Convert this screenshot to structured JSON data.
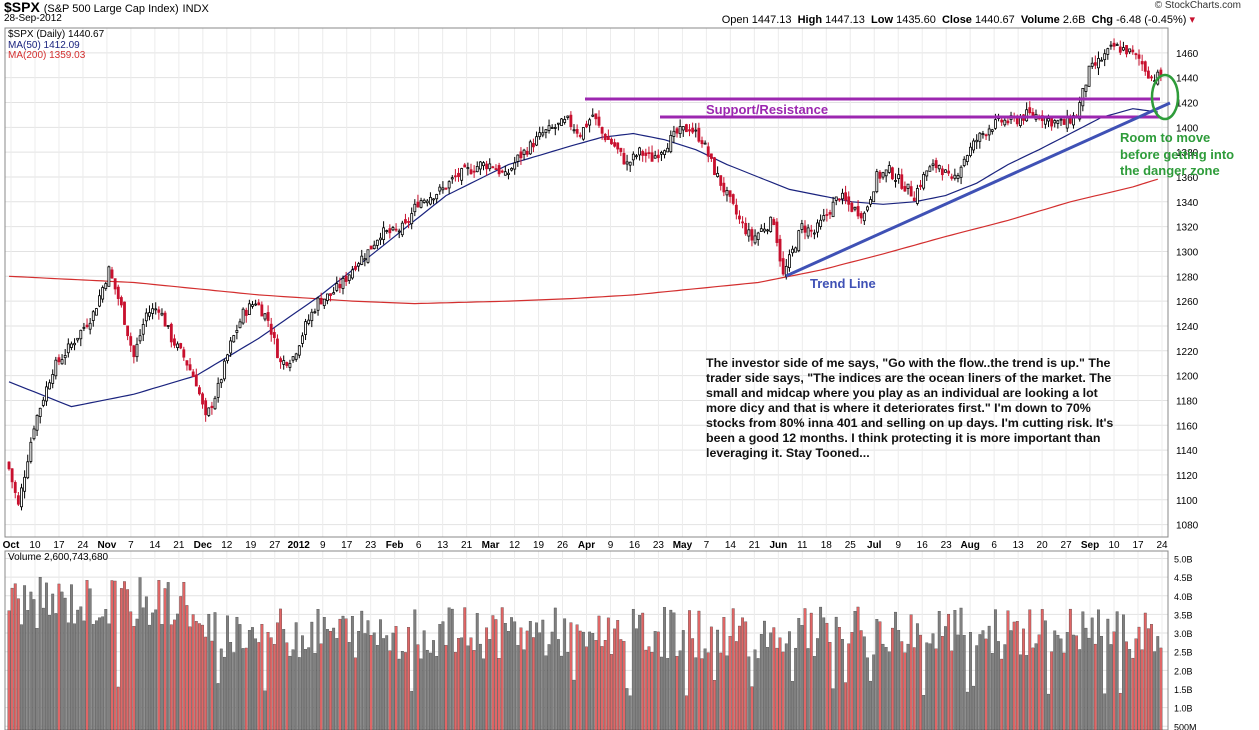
{
  "header": {
    "symbol": "$SPX",
    "name": "(S&P 500 Large Cap Index)",
    "exchange": "INDX",
    "date": "28-Sep-2012",
    "brand": "© StockCharts.com",
    "open_label": "Open",
    "open": "1447.13",
    "high_label": "High",
    "high": "1447.13",
    "low_label": "Low",
    "low": "1435.60",
    "close_label": "Close",
    "close": "1440.67",
    "volume_label": "Volume",
    "volume": "2.6B",
    "chg_label": "Chg",
    "chg": "-6.48 (-0.45%)"
  },
  "legend": {
    "price": "$SPX (Daily) 1440.67",
    "ma50": "MA(50) 1412.09",
    "ma200": "MA(200) 1359.03",
    "volume": "Volume 2,600,743,680"
  },
  "annotations": {
    "support": "Support/Resistance",
    "trend": "Trend Line",
    "room": [
      "Room to move",
      "before getting into",
      "the danger zone"
    ],
    "note": "The investor side of me says, \"Go with the flow..the trend is up.\" The trader side says, \"The indices are the ocean liners of the market. The small and midcap where you play as an individual are looking a lot more dicy and that is where it deteriorates first.\"  I'm down to 70% stocks from 80% inna 401 and selling on up days. I'm cutting risk. It's been a good 12 months. I think protecting it is more important than leveraging it. Stay Tooned..."
  },
  "colors": {
    "up": "#000000",
    "down": "#c8102e",
    "ma50": "#1a237e",
    "ma200": "#d32f2f",
    "support": "#9c27b0",
    "trend": "#3f51b5",
    "room": "#2e9c3a",
    "vol_up": "#808080",
    "vol_down": "#e06666"
  },
  "chart_data": [
    {
      "type": "candlestick",
      "title": "$SPX (Daily)",
      "ylim": [
        1070,
        1480
      ],
      "y_ticks": [
        1080,
        1100,
        1120,
        1140,
        1160,
        1180,
        1200,
        1220,
        1240,
        1260,
        1280,
        1300,
        1320,
        1340,
        1360,
        1380,
        1400,
        1420,
        1440,
        1460
      ],
      "x_labels": [
        "Oct",
        "10",
        "17",
        "24",
        "Nov",
        "7",
        "14",
        "21",
        "Dec",
        "12",
        "19",
        "27",
        "2012",
        "9",
        "17",
        "23",
        "Feb",
        "6",
        "13",
        "21",
        "Mar",
        "12",
        "19",
        "26",
        "Apr",
        "9",
        "16",
        "23",
        "May",
        "7",
        "14",
        "21",
        "Jun",
        "11",
        "18",
        "25",
        "Jul",
        "9",
        "16",
        "23",
        "Aug",
        "6",
        "13",
        "20",
        "27",
        "Sep",
        "10",
        "17",
        "24"
      ],
      "close_path": [
        [
          0,
          1125
        ],
        [
          3,
          1095
        ],
        [
          8,
          1160
        ],
        [
          14,
          1205
        ],
        [
          20,
          1225
        ],
        [
          27,
          1250
        ],
        [
          32,
          1285
        ],
        [
          36,
          1255
        ],
        [
          40,
          1215
        ],
        [
          44,
          1250
        ],
        [
          48,
          1255
        ],
        [
          52,
          1230
        ],
        [
          56,
          1215
        ],
        [
          60,
          1195
        ],
        [
          63,
          1165
        ],
        [
          67,
          1190
        ],
        [
          71,
          1225
        ],
        [
          75,
          1250
        ],
        [
          79,
          1260
        ],
        [
          83,
          1245
        ],
        [
          87,
          1210
        ],
        [
          91,
          1215
        ],
        [
          95,
          1240
        ],
        [
          99,
          1260
        ],
        [
          103,
          1265
        ],
        [
          107,
          1275
        ],
        [
          111,
          1290
        ],
        [
          115,
          1300
        ],
        [
          119,
          1315
        ],
        [
          123,
          1315
        ],
        [
          127,
          1320
        ],
        [
          131,
          1340
        ],
        [
          135,
          1345
        ],
        [
          139,
          1350
        ],
        [
          143,
          1360
        ],
        [
          147,
          1365
        ],
        [
          151,
          1370
        ],
        [
          155,
          1370
        ],
        [
          159,
          1360
        ],
        [
          163,
          1375
        ],
        [
          167,
          1385
        ],
        [
          171,
          1395
        ],
        [
          175,
          1400
        ],
        [
          179,
          1405
        ],
        [
          183,
          1395
        ],
        [
          187,
          1410
        ],
        [
          190,
          1395
        ],
        [
          194,
          1385
        ],
        [
          198,
          1370
        ],
        [
          202,
          1380
        ],
        [
          206,
          1375
        ],
        [
          210,
          1385
        ],
        [
          214,
          1395
        ],
        [
          218,
          1400
        ],
        [
          222,
          1390
        ],
        [
          226,
          1365
        ],
        [
          230,
          1345
        ],
        [
          234,
          1325
        ],
        [
          238,
          1310
        ],
        [
          242,
          1320
        ],
        [
          245,
          1325
        ],
        [
          248,
          1280
        ],
        [
          251,
          1300
        ],
        [
          254,
          1320
        ],
        [
          258,
          1315
        ],
        [
          262,
          1330
        ],
        [
          266,
          1345
        ],
        [
          270,
          1335
        ],
        [
          274,
          1330
        ],
        [
          278,
          1360
        ],
        [
          282,
          1365
        ],
        [
          286,
          1355
        ],
        [
          290,
          1345
        ],
        [
          294,
          1365
        ],
        [
          298,
          1370
        ],
        [
          302,
          1355
        ],
        [
          306,
          1375
        ],
        [
          310,
          1390
        ],
        [
          314,
          1400
        ],
        [
          318,
          1405
        ],
        [
          322,
          1405
        ],
        [
          326,
          1410
        ],
        [
          330,
          1410
        ],
        [
          334,
          1405
        ],
        [
          338,
          1403
        ],
        [
          342,
          1410
        ],
        [
          346,
          1445
        ],
        [
          350,
          1455
        ],
        [
          354,
          1465
        ],
        [
          358,
          1462
        ],
        [
          362,
          1455
        ],
        [
          366,
          1440
        ],
        [
          369,
          1441
        ]
      ],
      "ma50_path": [
        [
          0,
          1195
        ],
        [
          20,
          1175
        ],
        [
          40,
          1185
        ],
        [
          60,
          1200
        ],
        [
          80,
          1230
        ],
        [
          100,
          1265
        ],
        [
          120,
          1305
        ],
        [
          140,
          1345
        ],
        [
          160,
          1370
        ],
        [
          180,
          1385
        ],
        [
          190,
          1392
        ],
        [
          200,
          1395
        ],
        [
          210,
          1390
        ],
        [
          220,
          1382
        ],
        [
          230,
          1370
        ],
        [
          240,
          1360
        ],
        [
          250,
          1350
        ],
        [
          260,
          1345
        ],
        [
          270,
          1340
        ],
        [
          280,
          1338
        ],
        [
          290,
          1340
        ],
        [
          300,
          1345
        ],
        [
          310,
          1355
        ],
        [
          320,
          1370
        ],
        [
          330,
          1382
        ],
        [
          340,
          1395
        ],
        [
          350,
          1408
        ],
        [
          360,
          1415
        ],
        [
          369,
          1412
        ]
      ],
      "ma200_path": [
        [
          0,
          1280
        ],
        [
          40,
          1275
        ],
        [
          80,
          1265
        ],
        [
          110,
          1260
        ],
        [
          130,
          1258
        ],
        [
          160,
          1260
        ],
        [
          180,
          1262
        ],
        [
          200,
          1265
        ],
        [
          220,
          1270
        ],
        [
          240,
          1275
        ],
        [
          260,
          1285
        ],
        [
          280,
          1298
        ],
        [
          300,
          1312
        ],
        [
          320,
          1325
        ],
        [
          340,
          1340
        ],
        [
          360,
          1352
        ],
        [
          369,
          1359
        ]
      ]
    },
    {
      "type": "bar",
      "title": "Volume",
      "ylim": [
        400000000,
        5200000000
      ],
      "y_ticks": [
        "5.0B",
        "4.5B",
        "4.0B",
        "3.5B",
        "3.0B",
        "2.5B",
        "2.0B",
        "1.5B",
        "1.0B",
        "500M"
      ],
      "y_tick_values": [
        5000000000,
        4500000000,
        4000000000,
        3500000000,
        3000000000,
        2500000000,
        2000000000,
        1500000000,
        1000000000,
        500000000
      ],
      "last_value": 2600743680
    }
  ]
}
